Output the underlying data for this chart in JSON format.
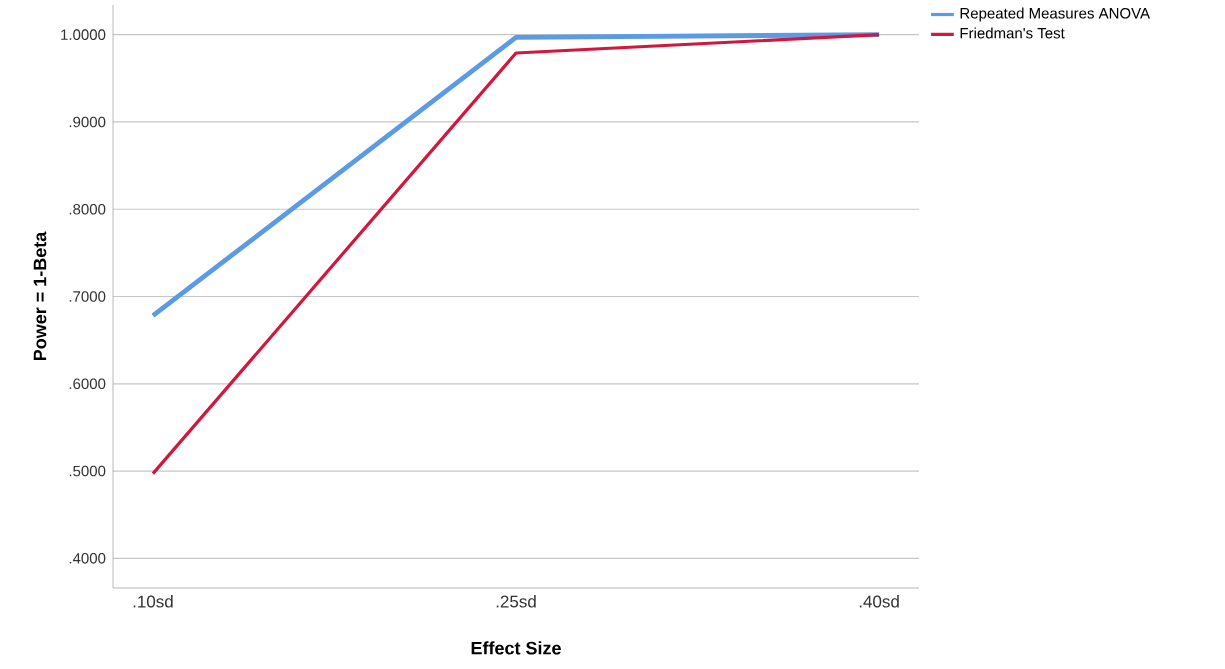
{
  "chart_data": {
    "type": "line",
    "xlabel": "Effect Size",
    "ylabel": "Power = 1-Beta",
    "categories": [
      ".10sd",
      ".25sd",
      ".40sd"
    ],
    "series": [
      {
        "name": "Repeated Measures ANOVA",
        "color": "#5b9be6",
        "values": [
          0.678,
          0.997,
          1.0
        ]
      },
      {
        "name": "Friedman's Test",
        "color": "#d3163d",
        "values": [
          0.497,
          0.979,
          1.0
        ]
      }
    ],
    "ylim": [
      0.366,
      1.034
    ],
    "yticks": [
      {
        "value": 0.4,
        "label": ".4000"
      },
      {
        "value": 0.5,
        "label": ".5000"
      },
      {
        "value": 0.6,
        "label": ".6000"
      },
      {
        "value": 0.7,
        "label": ".7000"
      },
      {
        "value": 0.8,
        "label": ".8000"
      },
      {
        "value": 0.9,
        "label": ".9000"
      },
      {
        "value": 1.0,
        "label": "1.0000"
      }
    ],
    "grid": "y",
    "legend": "top right",
    "marker": "none",
    "line_style": "solid"
  }
}
